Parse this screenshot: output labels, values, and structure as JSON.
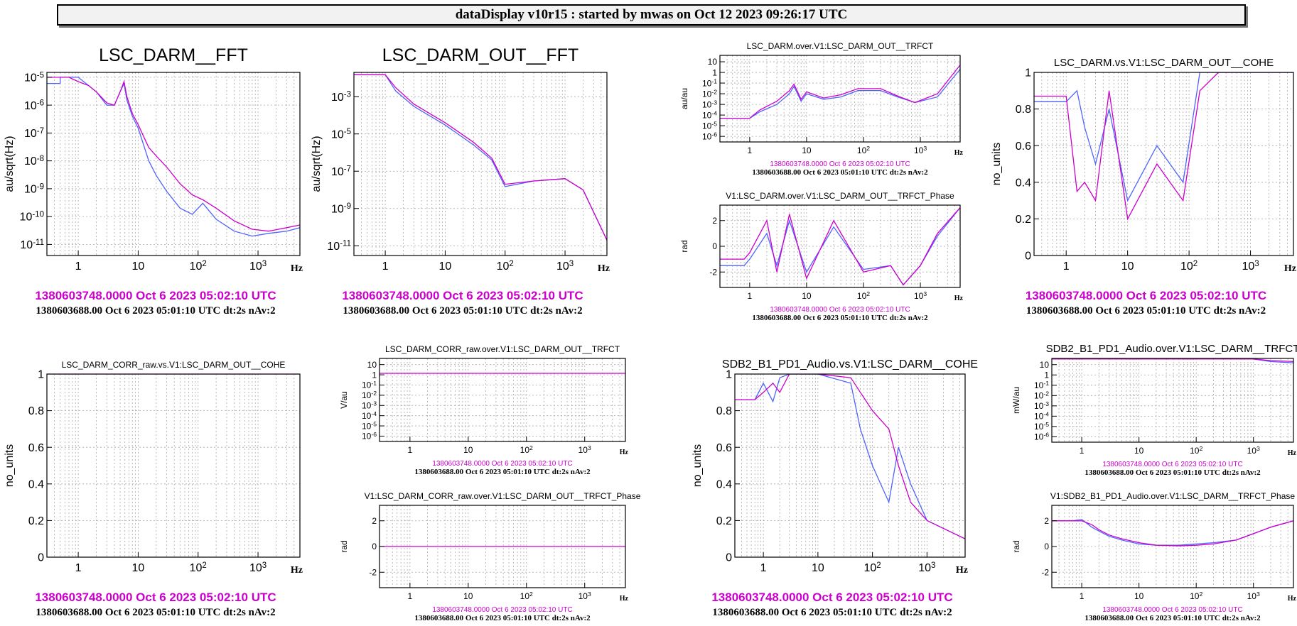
{
  "header_title": "dataDisplay v10r15 : started by mwas on Oct 12 2023 09:26:17 UTC",
  "colors": {
    "magenta": "#cc00cc",
    "blue": "#4f63ff",
    "frame": "#000000",
    "grid": "#a8a8a8",
    "background": "#ffffff"
  },
  "chart_data": [
    {
      "type": "line",
      "title": "LSC_DARM__FFT",
      "ylabel": "au/sqrt(Hz)",
      "xlabel": "Hz",
      "x_scale": "log",
      "y_scale": "log",
      "xlim": [
        0.3,
        5000
      ],
      "ylim": [
        4e-12,
        1.5e-05
      ],
      "x_ticks": [
        "1",
        "10",
        "10^2",
        "10^3"
      ],
      "y_ticks": [
        "10^-5",
        "10^-6",
        "10^-7",
        "10^-8",
        "10^-9",
        "10^-10",
        "10^-11"
      ],
      "grid": true,
      "timestamp": "1380603748.0000 Oct 6 2023 05:02:10 UTC",
      "info": "1380603688.00 Oct 6 2023 05:01:10 UTC dt:2s nAv:2",
      "series": [
        {
          "color": "blue",
          "x": [
            0.3,
            0.5,
            0.5,
            0.7,
            1,
            1.5,
            2,
            3,
            4,
            5,
            5.8,
            6.5,
            8,
            10,
            15,
            20,
            30,
            50,
            80,
            120,
            200,
            400,
            800,
            1500,
            3000,
            5000
          ],
          "y": [
            6e-06,
            6e-06,
            1e-05,
            1e-05,
            1e-05,
            5e-06,
            3e-06,
            1e-06,
            1e-06,
            3e-06,
            6e-06,
            1.5e-06,
            4e-07,
            1.5e-07,
            1e-08,
            3e-09,
            8e-10,
            2e-10,
            1.2e-10,
            3e-10,
            8e-11,
            3e-11,
            2e-11,
            2.5e-11,
            3e-11,
            4e-11
          ]
        },
        {
          "color": "magenta",
          "x": [
            0.3,
            0.5,
            0.7,
            1,
            1.5,
            2,
            3,
            4,
            5,
            5.8,
            6.5,
            8,
            10,
            15,
            20,
            30,
            50,
            80,
            120,
            200,
            400,
            800,
            1500,
            3000,
            5000
          ],
          "y": [
            1e-05,
            1e-05,
            1e-05,
            7e-06,
            5e-06,
            3e-06,
            1.2e-06,
            1e-06,
            3e-06,
            7e-06,
            2e-06,
            5e-07,
            2e-07,
            3e-08,
            1.5e-08,
            6e-09,
            1.5e-09,
            6e-10,
            4e-10,
            2e-10,
            7e-11,
            3.5e-11,
            3e-11,
            4e-11,
            5e-11
          ]
        }
      ]
    },
    {
      "type": "line",
      "title": "LSC_DARM_OUT__FFT",
      "ylabel": "au/sqrt(Hz)",
      "xlabel": "Hz",
      "x_scale": "log",
      "y_scale": "log",
      "xlim": [
        0.3,
        5000
      ],
      "ylim": [
        3e-12,
        0.02
      ],
      "x_ticks": [
        "1",
        "10",
        "10^2",
        "10^3"
      ],
      "y_ticks": [
        "10^-3",
        "10^-5",
        "10^-7",
        "10^-9",
        "10^-11"
      ],
      "grid": true,
      "timestamp": "1380603748.0000 Oct 6 2023 05:02:10 UTC",
      "info": "1380603688.00 Oct 6 2023 05:01:10 UTC dt:2s nAv:2",
      "series": [
        {
          "color": "blue",
          "x": [
            0.3,
            1,
            1.5,
            3,
            10,
            30,
            60,
            100,
            300,
            1000,
            2000,
            5000
          ],
          "y": [
            0.015,
            0.015,
            0.002,
            0.0003,
            3e-05,
            2.5e-06,
            4e-07,
            1.5e-08,
            3e-08,
            4e-08,
            1e-08,
            2e-11
          ]
        },
        {
          "color": "magenta",
          "x": [
            0.3,
            1,
            1.5,
            3,
            10,
            30,
            60,
            100,
            300,
            1000,
            2000,
            5000
          ],
          "y": [
            0.015,
            0.015,
            0.003,
            0.0004,
            4e-05,
            3.5e-06,
            5e-07,
            2e-08,
            3e-08,
            4e-08,
            1e-08,
            2e-11
          ]
        }
      ]
    },
    {
      "type": "line",
      "title": "LSC_DARM.over.V1:LSC_DARM_OUT__TRFCT",
      "ylabel": "au/au",
      "xlabel": "Hz",
      "x_scale": "log",
      "y_scale": "log",
      "xlim": [
        0.3,
        5000
      ],
      "ylim": [
        3e-07,
        40
      ],
      "x_ticks": [
        "1",
        "10",
        "10^2",
        "10^3"
      ],
      "y_ticks": [
        "10",
        "1",
        "10^-1",
        "10^-2",
        "10^-3",
        "10^-4",
        "10^-5",
        "10^-6"
      ],
      "grid": true,
      "timestamp": "1380603748.0000 Oct 6 2023 05:02:10 UTC",
      "info": "1380603688.00 Oct 6 2023 05:01:10 UTC dt:2s nAv:2",
      "series": [
        {
          "color": "blue",
          "x": [
            0.3,
            1,
            1.5,
            3,
            5,
            6,
            8,
            10,
            20,
            40,
            80,
            200,
            400,
            800,
            2000,
            5000
          ],
          "y": [
            5e-05,
            5e-05,
            0.0002,
            0.001,
            0.01,
            0.05,
            0.002,
            0.01,
            0.003,
            0.005,
            0.02,
            0.02,
            0.005,
            0.0015,
            0.005,
            2
          ]
        },
        {
          "color": "magenta",
          "x": [
            0.3,
            1,
            1.5,
            3,
            5,
            6,
            8,
            10,
            20,
            40,
            80,
            200,
            400,
            800,
            2000,
            5000
          ],
          "y": [
            5e-05,
            5e-05,
            0.0003,
            0.002,
            0.02,
            0.08,
            0.003,
            0.015,
            0.004,
            0.008,
            0.03,
            0.03,
            0.006,
            0.0015,
            0.01,
            5
          ]
        }
      ]
    },
    {
      "type": "line",
      "title": "V1:LSC_DARM.over.V1:LSC_DARM_OUT__TRFCT_Phase",
      "ylabel": "rad",
      "xlabel": "Hz",
      "x_scale": "log",
      "y_scale": "linear",
      "xlim": [
        0.3,
        5000
      ],
      "ylim": [
        -3.2,
        3.2
      ],
      "x_ticks": [
        "1",
        "10",
        "10^2",
        "10^3"
      ],
      "y_ticks": [
        "2",
        "0",
        "-2"
      ],
      "grid": true,
      "timestamp": "1380603748.0000 Oct 6 2023 05:02:10 UTC",
      "info": "1380603688.00 Oct 6 2023 05:01:10 UTC dt:2s nAv:2",
      "series": [
        {
          "color": "blue",
          "x": [
            0.3,
            0.8,
            1,
            2,
            3,
            5,
            10,
            30,
            100,
            300,
            500,
            1000,
            2000,
            5000
          ],
          "y": [
            -1.5,
            -1.5,
            -1,
            1,
            -1.5,
            2,
            -2,
            1.5,
            -1.8,
            -1.5,
            -3,
            -1.5,
            0.8,
            3
          ]
        },
        {
          "color": "magenta",
          "x": [
            0.3,
            0.8,
            1,
            2,
            3,
            5,
            10,
            30,
            100,
            300,
            500,
            1000,
            2000,
            5000
          ],
          "y": [
            -1,
            -1,
            -0.5,
            2,
            -2,
            2.5,
            -2.5,
            2,
            -2,
            -1.5,
            -3,
            -1.5,
            1,
            3
          ]
        }
      ]
    },
    {
      "type": "line",
      "title": "LSC_DARM.vs.V1:LSC_DARM_OUT__COHE",
      "ylabel": "no_units",
      "xlabel": "Hz",
      "x_scale": "log",
      "y_scale": "linear",
      "xlim": [
        0.3,
        5000
      ],
      "ylim": [
        0,
        1
      ],
      "x_ticks": [
        "1",
        "10",
        "10^2",
        "10^3"
      ],
      "y_ticks": [
        "1",
        "0.8",
        "0.6",
        "0.4",
        "0.2",
        "0"
      ],
      "grid": true,
      "timestamp": "1380603748.0000 Oct 6 2023 05:02:10 UTC",
      "info": "1380603688.00 Oct 6 2023 05:01:10 UTC dt:2s nAv:2",
      "series": [
        {
          "color": "blue",
          "x": [
            0.3,
            1,
            1.5,
            2,
            3,
            5,
            10,
            30,
            80,
            150,
            300,
            500,
            1000,
            5000
          ],
          "y": [
            0.84,
            0.84,
            0.9,
            0.7,
            0.5,
            0.8,
            0.3,
            0.6,
            0.4,
            1,
            1,
            1,
            1,
            1
          ]
        },
        {
          "color": "magenta",
          "x": [
            0.3,
            1,
            1.5,
            2,
            3,
            5,
            10,
            30,
            80,
            150,
            300,
            500,
            1000,
            5000
          ],
          "y": [
            0.87,
            0.87,
            0.35,
            0.4,
            0.3,
            0.9,
            0.2,
            0.5,
            0.3,
            0.9,
            1,
            1,
            1,
            1
          ]
        }
      ]
    },
    {
      "type": "line",
      "title": "LSC_DARM_CORR_raw.vs.V1:LSC_DARM_OUT__COHE",
      "ylabel": "no_units",
      "xlabel": "Hz",
      "x_scale": "log",
      "y_scale": "linear",
      "xlim": [
        0.3,
        5000
      ],
      "ylim": [
        0,
        1
      ],
      "x_ticks": [
        "1",
        "10",
        "10^2",
        "10^3"
      ],
      "y_ticks": [
        "1",
        "0.8",
        "0.6",
        "0.4",
        "0.2",
        "0"
      ],
      "grid": true,
      "timestamp": "1380603748.0000 Oct 6 2023 05:02:10 UTC",
      "info": "1380603688.00 Oct 6 2023 05:01:10 UTC dt:2s nAv:2",
      "series": [
        {
          "color": "magenta",
          "x": [
            0.3,
            5000
          ],
          "y": [
            1,
            1
          ]
        }
      ]
    },
    {
      "type": "line",
      "title": "LSC_DARM_CORR_raw.over.V1:LSC_DARM_OUT__TRFCT",
      "ylabel": "V/au",
      "xlabel": "Hz",
      "x_scale": "log",
      "y_scale": "log",
      "xlim": [
        0.3,
        5000
      ],
      "ylim": [
        3e-07,
        40
      ],
      "x_ticks": [
        "1",
        "10",
        "10^2",
        "10^3"
      ],
      "y_ticks": [
        "10",
        "1",
        "10^-1",
        "10^-2",
        "10^-3",
        "10^-4",
        "10^-5",
        "10^-6"
      ],
      "grid": true,
      "timestamp": "1380603748.0000 Oct 6 2023 05:02:10 UTC",
      "info": "1380603688.00 Oct 6 2023 05:01:10 UTC dt:2s nAv:2",
      "series": [
        {
          "color": "magenta",
          "x": [
            0.3,
            5000
          ],
          "y": [
            1.4,
            1.4
          ]
        }
      ]
    },
    {
      "type": "line",
      "title": "V1:LSC_DARM_CORR_raw.over.V1:LSC_DARM_OUT__TRFCT_Phase",
      "ylabel": "rad",
      "xlabel": "Hz",
      "x_scale": "log",
      "y_scale": "linear",
      "xlim": [
        0.3,
        5000
      ],
      "ylim": [
        -3.2,
        3.2
      ],
      "x_ticks": [
        "1",
        "10",
        "10^2",
        "10^3"
      ],
      "y_ticks": [
        "2",
        "0",
        "-2"
      ],
      "grid": true,
      "timestamp": "1380603748.0000 Oct 6 2023 05:02:10 UTC",
      "info": "1380603688.00 Oct 6 2023 05:01:10 UTC dt:2s nAv:2",
      "series": [
        {
          "color": "magenta",
          "x": [
            0.3,
            5000
          ],
          "y": [
            0,
            0
          ]
        }
      ]
    },
    {
      "type": "line",
      "title": "SDB2_B1_PD1_Audio.vs.V1:LSC_DARM__COHE",
      "ylabel": "no_units",
      "xlabel": "Hz",
      "x_scale": "log",
      "y_scale": "linear",
      "xlim": [
        0.3,
        5000
      ],
      "ylim": [
        0,
        1
      ],
      "x_ticks": [
        "1",
        "10",
        "10^2",
        "10^3"
      ],
      "y_ticks": [
        "1",
        "0.8",
        "0.6",
        "0.4",
        "0.2",
        "0"
      ],
      "grid": true,
      "timestamp": "1380603748.0000 Oct 6 2023 05:02:10 UTC",
      "info": "1380603688.00 Oct 6 2023 05:01:10 UTC dt:2s nAv:2",
      "series": [
        {
          "color": "blue",
          "x": [
            0.3,
            0.7,
            1,
            1.5,
            2,
            3,
            10,
            40,
            60,
            100,
            200,
            300,
            500,
            1000,
            5000
          ],
          "y": [
            0.86,
            0.86,
            0.95,
            0.85,
            0.98,
            1,
            1,
            0.95,
            0.7,
            0.5,
            0.3,
            0.6,
            0.4,
            0.2,
            0.1
          ]
        },
        {
          "color": "magenta",
          "x": [
            0.3,
            0.7,
            1,
            1.5,
            2,
            3,
            10,
            40,
            60,
            100,
            200,
            300,
            500,
            1000,
            5000
          ],
          "y": [
            0.86,
            0.86,
            0.9,
            0.95,
            0.9,
            1,
            1,
            0.98,
            0.9,
            0.8,
            0.7,
            0.5,
            0.3,
            0.2,
            0.1
          ]
        }
      ]
    },
    {
      "type": "line",
      "title": "SDB2_B1_PD1_Audio.over.V1:LSC_DARM__TRFCT",
      "ylabel": "mW/au",
      "xlabel": "Hz",
      "x_scale": "log",
      "y_scale": "log",
      "xlim": [
        0.3,
        5000
      ],
      "ylim": [
        3e-07,
        40
      ],
      "x_ticks": [
        "1",
        "10",
        "10^2",
        "10^3"
      ],
      "y_ticks": [
        "10",
        "1",
        "10^-1",
        "10^-2",
        "10^-3",
        "10^-4",
        "10^-5",
        "10^-6"
      ],
      "grid": true,
      "timestamp": "1380603748.0000 Oct 6 2023 05:02:10 UTC",
      "info": "1380603688.00 Oct 6 2023 05:01:10 UTC dt:2s nAv:2",
      "series": [
        {
          "color": "blue",
          "x": [
            0.3,
            1000,
            2000,
            5000
          ],
          "y": [
            35,
            35,
            20,
            15
          ]
        },
        {
          "color": "magenta",
          "x": [
            0.3,
            1000,
            2000,
            5000
          ],
          "y": [
            35,
            35,
            25,
            20
          ]
        }
      ]
    },
    {
      "type": "line",
      "title": "V1:SDB2_B1_PD1_Audio.over.V1:LSC_DARM__TRFCT_Phase",
      "ylabel": "rad",
      "xlabel": "Hz",
      "x_scale": "log",
      "y_scale": "linear",
      "xlim": [
        0.3,
        5000
      ],
      "ylim": [
        -3.2,
        3.2
      ],
      "x_ticks": [
        "1",
        "10",
        "10^2",
        "10^3"
      ],
      "y_ticks": [
        "2",
        "0",
        "-2"
      ],
      "grid": true,
      "timestamp": "1380603748.0000 Oct 6 2023 05:02:10 UTC",
      "info": "1380603688.00 Oct 6 2023 05:01:10 UTC dt:2s nAv:2",
      "series": [
        {
          "color": "blue",
          "x": [
            0.3,
            0.7,
            1,
            1.5,
            2,
            3,
            5,
            10,
            20,
            50,
            100,
            200,
            500,
            1000,
            2000,
            5000
          ],
          "y": [
            2,
            2,
            2.1,
            1.5,
            1.2,
            0.8,
            0.5,
            0.2,
            0.1,
            0.1,
            0.2,
            0.3,
            0.5,
            1,
            1.5,
            2
          ]
        },
        {
          "color": "magenta",
          "x": [
            0.3,
            0.7,
            1,
            1.5,
            2,
            3,
            5,
            10,
            20,
            50,
            100,
            200,
            500,
            1000,
            2000,
            5000
          ],
          "y": [
            2,
            2,
            2,
            1.7,
            1.3,
            0.9,
            0.6,
            0.3,
            0.1,
            0.05,
            0.1,
            0.2,
            0.5,
            1,
            1.5,
            2
          ]
        }
      ]
    }
  ]
}
